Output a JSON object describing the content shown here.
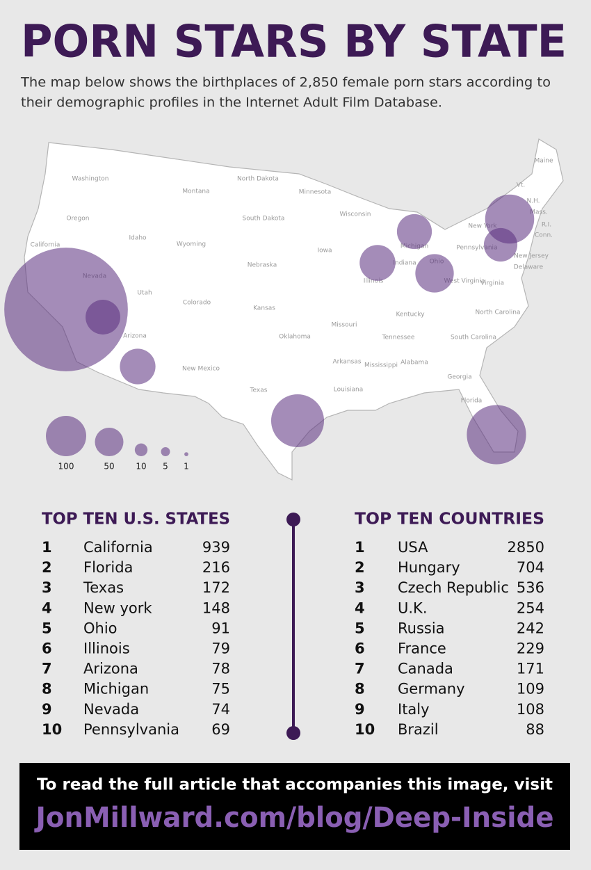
{
  "header": {
    "title": "PORN STARS BY STATE",
    "subtitle_lines": [
      "The map below shows the birthplaces of 2,850 female porn stars according to",
      "their demographic profiles in the Internet Adult Film Database."
    ]
  },
  "map": {
    "state_labels": [
      "Washington",
      "Montana",
      "North Dakota",
      "Minnesota",
      "Oregon",
      "Idaho",
      "Wyoming",
      "South Dakota",
      "Wisconsin",
      "Maine",
      "Vt.",
      "N.H.",
      "Mass.",
      "R.I.",
      "Conn.",
      "New York",
      "Michigan",
      "Pennsylvania",
      "New Jersey",
      "Delaware",
      "Iowa",
      "Nebraska",
      "Illinois",
      "Indiana",
      "Ohio",
      "Nevada",
      "Utah",
      "Colorado",
      "Kansas",
      "Missouri",
      "Kentucky",
      "West Virginia",
      "Virginia",
      "North Carolina",
      "Tennessee",
      "South Carolina",
      "California",
      "Arizona",
      "Oklahoma",
      "Arkansas",
      "Mississippi",
      "Alabama",
      "Georgia",
      "New Mexico",
      "Texas",
      "Louisiana",
      "Florida"
    ],
    "legend_sizes": [
      100,
      50,
      10,
      5,
      1
    ]
  },
  "states": {
    "heading": "TOP TEN U.S. STATES",
    "rows": [
      {
        "rank": "1",
        "name": "California",
        "value": 939
      },
      {
        "rank": "2",
        "name": "Florida",
        "value": 216
      },
      {
        "rank": "3",
        "name": "Texas",
        "value": 172
      },
      {
        "rank": "4",
        "name": "New york",
        "value": 148
      },
      {
        "rank": "5",
        "name": "Ohio",
        "value": 91
      },
      {
        "rank": "6",
        "name": "Illinois",
        "value": 79
      },
      {
        "rank": "7",
        "name": "Arizona",
        "value": 78
      },
      {
        "rank": "8",
        "name": "Michigan",
        "value": 75
      },
      {
        "rank": "9",
        "name": "Nevada",
        "value": 74
      },
      {
        "rank": "10",
        "name": "Pennsylvania",
        "value": 69
      }
    ]
  },
  "countries": {
    "heading": "TOP TEN COUNTRIES",
    "rows": [
      {
        "rank": "1",
        "name": "USA",
        "value": 2850
      },
      {
        "rank": "2",
        "name": "Hungary",
        "value": 704
      },
      {
        "rank": "3",
        "name": "Czech Republic",
        "value": 536
      },
      {
        "rank": "4",
        "name": "U.K.",
        "value": 254
      },
      {
        "rank": "5",
        "name": "Russia",
        "value": 242
      },
      {
        "rank": "6",
        "name": "France",
        "value": 229
      },
      {
        "rank": "7",
        "name": "Canada",
        "value": 171
      },
      {
        "rank": "8",
        "name": "Germany",
        "value": 109
      },
      {
        "rank": "9",
        "name": "Italy",
        "value": 108
      },
      {
        "rank": "10",
        "name": "Brazil",
        "value": 88
      }
    ]
  },
  "footer": {
    "line1": "To read the full article that accompanies this image, visit",
    "line2": "JonMillward.com/blog/Deep-Inside"
  }
}
